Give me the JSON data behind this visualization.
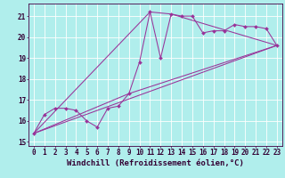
{
  "bg_color": "#b0eeec",
  "line_color": "#993399",
  "marker_color": "#993399",
  "xlim": [
    -0.5,
    23.5
  ],
  "ylim": [
    14.8,
    21.6
  ],
  "yticks": [
    15,
    16,
    17,
    18,
    19,
    20,
    21
  ],
  "xticks": [
    0,
    1,
    2,
    3,
    4,
    5,
    6,
    7,
    8,
    9,
    10,
    11,
    12,
    13,
    14,
    15,
    16,
    17,
    18,
    19,
    20,
    21,
    22,
    23
  ],
  "grid_color": "#ffffff",
  "data_x": [
    0,
    1,
    2,
    3,
    4,
    5,
    6,
    7,
    8,
    9,
    10,
    11,
    12,
    13,
    14,
    15,
    16,
    17,
    18,
    19,
    20,
    21,
    22,
    23
  ],
  "data_y": [
    15.4,
    16.3,
    16.6,
    16.6,
    16.5,
    16.0,
    15.7,
    16.6,
    16.7,
    17.3,
    18.8,
    21.2,
    19.0,
    21.1,
    21.0,
    21.0,
    20.2,
    20.3,
    20.3,
    20.6,
    20.5,
    20.5,
    20.4,
    19.6
  ],
  "line1_x": [
    0,
    23
  ],
  "line1_y": [
    15.4,
    19.6
  ],
  "line2_x": [
    0,
    11,
    13,
    23
  ],
  "line2_y": [
    15.4,
    21.2,
    21.1,
    19.6
  ],
  "line3_x": [
    0,
    9,
    23
  ],
  "line3_y": [
    15.4,
    17.3,
    19.6
  ],
  "tick_fontsize": 5.5,
  "xlabel_fontsize": 6.5,
  "xlabel": "Windchill (Refroidissement éolien,°C)"
}
